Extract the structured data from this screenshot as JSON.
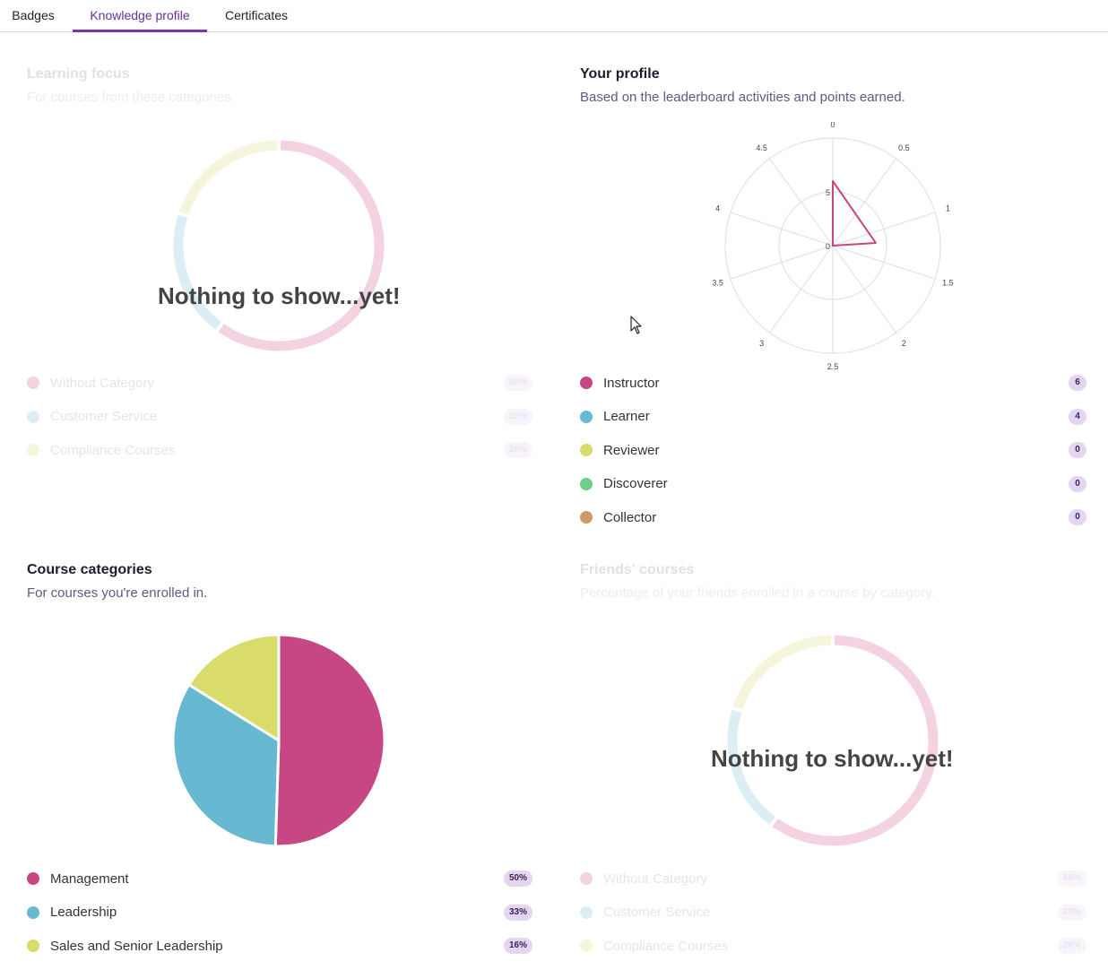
{
  "tabs": [
    {
      "label": "Badges",
      "active": false
    },
    {
      "label": "Knowledge profile",
      "active": true
    },
    {
      "label": "Certificates",
      "active": false
    }
  ],
  "colors": {
    "accent": "#7b35b2",
    "pink": "#c64784",
    "blue": "#67b9d2",
    "yellow": "#d9db6b",
    "green": "#6ccf8a",
    "brown": "#cf9a6a"
  },
  "learning_focus": {
    "title": "Learning focus",
    "subtitle": "For courses from these categories.",
    "empty_message": "Nothing to show...yet!",
    "legend": [
      {
        "label": "Without Category",
        "value": "60%",
        "color": "#f3d3e2"
      },
      {
        "label": "Customer Service",
        "value": "20%",
        "color": "#dbeef4"
      },
      {
        "label": "Compliance Courses",
        "value": "20%",
        "color": "#f5f5dc"
      }
    ]
  },
  "your_profile": {
    "title": "Your profile",
    "subtitle": "Based on the leaderboard activities and points earned.",
    "legend": [
      {
        "label": "Instructor",
        "value": "6",
        "color": "#c64784"
      },
      {
        "label": "Learner",
        "value": "4",
        "color": "#67b9d2"
      },
      {
        "label": "Reviewer",
        "value": "0",
        "color": "#d9db6b"
      },
      {
        "label": "Discoverer",
        "value": "0",
        "color": "#6ccf8a"
      },
      {
        "label": "Collector",
        "value": "0",
        "color": "#cf9a6a"
      }
    ]
  },
  "course_categories": {
    "title": "Course categories",
    "subtitle": "For courses you're enrolled in.",
    "legend": [
      {
        "label": "Management",
        "value": "50%",
        "color": "#c64784"
      },
      {
        "label": "Leadership",
        "value": "33%",
        "color": "#67b9d2"
      },
      {
        "label": "Sales and Senior Leadership",
        "value": "16%",
        "color": "#d9db6b"
      }
    ]
  },
  "friends_courses": {
    "title": "Friends' courses",
    "subtitle": "Percentage of your friends enrolled in a course by category.",
    "empty_message": "Nothing to show...yet!",
    "legend": [
      {
        "label": "Without Category",
        "value": "60%",
        "color": "#f3d3e2"
      },
      {
        "label": "Customer Service",
        "value": "20%",
        "color": "#dbeef4"
      },
      {
        "label": "Compliance Courses",
        "value": "20%",
        "color": "#f5f5dc"
      }
    ]
  },
  "chart_data": [
    {
      "type": "pie",
      "variant": "donut",
      "chart": "learning-focus",
      "categories": [
        "Without Category",
        "Customer Service",
        "Compliance Courses"
      ],
      "values": [
        60,
        20,
        20
      ]
    },
    {
      "type": "radar",
      "chart": "your-profile",
      "angular_ticks": [
        "0",
        "0.5",
        "1",
        "1.5",
        "2",
        "2.5",
        "3",
        "3.5",
        "4",
        "4.5"
      ],
      "radial_ticks": [
        "0",
        "5"
      ],
      "radial_max": 10,
      "series": [
        {
          "values": [
            [
              0,
              6
            ],
            [
              1.2,
              4
            ]
          ],
          "color": "#c64784"
        }
      ]
    },
    {
      "type": "pie",
      "chart": "course-categories",
      "categories": [
        "Management",
        "Leadership",
        "Sales and Senior Leadership"
      ],
      "values": [
        50,
        33,
        16
      ]
    },
    {
      "type": "pie",
      "variant": "donut",
      "chart": "friends-courses",
      "categories": [
        "Without Category",
        "Customer Service",
        "Compliance Courses"
      ],
      "values": [
        60,
        20,
        20
      ]
    }
  ]
}
